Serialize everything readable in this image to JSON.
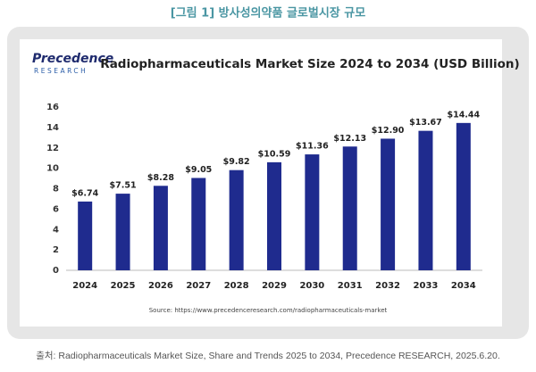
{
  "figure_title": "[그림 1] 방사성의약품 글로벌시장 규모",
  "logo": {
    "name": "Precedence",
    "sub": "RESEARCH"
  },
  "chart_data": {
    "type": "bar",
    "title": "Radiopharmaceuticals Market Size 2024 to 2034 (USD Billion)",
    "categories": [
      "2024",
      "2025",
      "2026",
      "2027",
      "2028",
      "2029",
      "2030",
      "2031",
      "2032",
      "2033",
      "2034"
    ],
    "values": [
      6.74,
      7.51,
      8.28,
      9.05,
      9.82,
      10.59,
      11.36,
      12.13,
      12.9,
      13.67,
      14.44
    ],
    "value_labels": [
      "$6.74",
      "$7.51",
      "$8.28",
      "$9.05",
      "$9.82",
      "$10.59",
      "$11.36",
      "$12.13",
      "$12.90",
      "$13.67",
      "$14.44"
    ],
    "color": "#1f2b8e",
    "ylim": [
      0,
      16
    ],
    "yticks": [
      0,
      2,
      4,
      6,
      8,
      10,
      12,
      14,
      16
    ],
    "grid": false,
    "source": "Source: https://www.precedenceresearch.com/radiopharmaceuticals-market"
  },
  "caption": "출처: Radiopharmaceuticals Market Size, Share and Trends 2025 to 2034, Precedence RESEARCH, 2025.6.20."
}
